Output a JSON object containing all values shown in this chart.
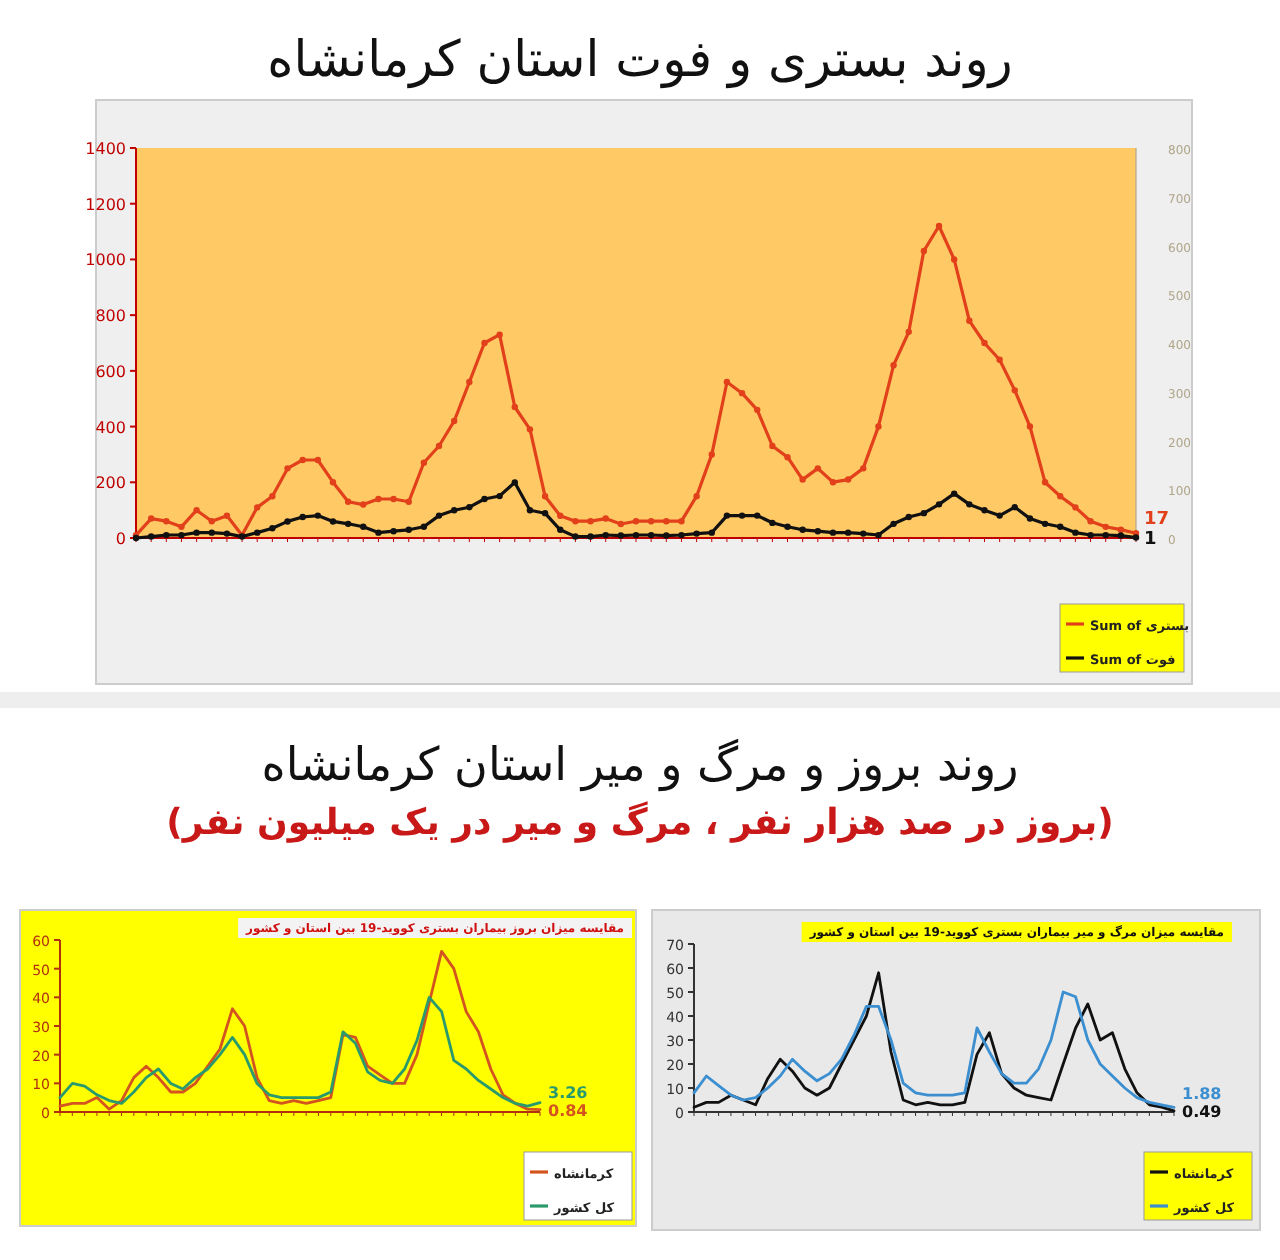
{
  "chart_data": [
    {
      "type": "line",
      "title": "روند بستری و فوت استان کرمانشاه",
      "categories": [
        null,
        null,
        null,
        null,
        null,
        null,
        null,
        null,
        null,
        null,
        null,
        null,
        null,
        null,
        null,
        null,
        null,
        null,
        null,
        null,
        null,
        null,
        null,
        null,
        null,
        null,
        null,
        null,
        null,
        null,
        null,
        null,
        null,
        null,
        null,
        null,
        null,
        null,
        null,
        null,
        null,
        null,
        null,
        null,
        null,
        null,
        null,
        null,
        null,
        null,
        null,
        null,
        null,
        null,
        null,
        null,
        null,
        null,
        null,
        null,
        null,
        null,
        null,
        null,
        null,
        null,
        null
      ],
      "ylim": [
        0,
        1400
      ],
      "yticks": [
        0,
        200,
        400,
        600,
        800,
        1000,
        1200,
        1400
      ],
      "y2lim": [
        0,
        800
      ],
      "y2ticks": [
        0,
        100,
        200,
        300,
        400,
        500,
        600,
        700,
        800
      ],
      "marker": "circle",
      "legend": "bottom right",
      "series": [
        {
          "name": "Sum of بستری",
          "color": "#e2401a",
          "values": [
            10,
            70,
            60,
            40,
            100,
            60,
            80,
            10,
            110,
            150,
            250,
            280,
            280,
            200,
            130,
            120,
            140,
            140,
            130,
            270,
            330,
            420,
            560,
            700,
            730,
            470,
            390,
            150,
            80,
            60,
            60,
            70,
            50,
            60,
            60,
            60,
            60,
            150,
            300,
            560,
            520,
            460,
            330,
            290,
            210,
            250,
            200,
            210,
            250,
            400,
            620,
            740,
            1030,
            1120,
            1000,
            780,
            700,
            640,
            530,
            400,
            200,
            150,
            110,
            60,
            40,
            30,
            17
          ],
          "value_labels": [
            null,
            null,
            null,
            null,
            null,
            null,
            null,
            null,
            null,
            null,
            null,
            null,
            null,
            null,
            null,
            null,
            null,
            null,
            null,
            null,
            null,
            null,
            null,
            null,
            null,
            null,
            null,
            null,
            null,
            null,
            null,
            null,
            null,
            null,
            null,
            null,
            null,
            null,
            null,
            null,
            null,
            null,
            null,
            null,
            null,
            null,
            null,
            null,
            null,
            null,
            null,
            null,
            null,
            null,
            null,
            null,
            null,
            null,
            null,
            null,
            null,
            null,
            null,
            null,
            null,
            null,
            "17"
          ]
        },
        {
          "name": "Sum of فوت",
          "color": "#111111",
          "axis": "y2",
          "values": [
            0,
            3,
            6,
            6,
            11,
            11,
            9,
            3,
            11,
            20,
            34,
            43,
            46,
            34,
            29,
            23,
            11,
            14,
            17,
            23,
            46,
            57,
            63,
            80,
            86,
            114,
            57,
            51,
            17,
            3,
            3,
            6,
            5,
            6,
            6,
            5,
            6,
            9,
            11,
            46,
            46,
            46,
            31,
            23,
            17,
            14,
            11,
            11,
            9,
            6,
            29,
            43,
            51,
            69,
            91,
            69,
            57,
            46,
            63,
            40,
            29,
            23,
            11,
            6,
            6,
            5,
            1
          ],
          "value_labels": [
            null,
            null,
            null,
            null,
            null,
            null,
            null,
            null,
            null,
            null,
            null,
            null,
            null,
            null,
            null,
            null,
            null,
            null,
            null,
            null,
            null,
            null,
            null,
            null,
            null,
            null,
            null,
            null,
            null,
            null,
            null,
            null,
            null,
            null,
            null,
            null,
            null,
            null,
            null,
            null,
            null,
            null,
            null,
            null,
            null,
            null,
            null,
            null,
            null,
            null,
            null,
            null,
            null,
            null,
            null,
            null,
            null,
            null,
            null,
            null,
            null,
            null,
            null,
            null,
            null,
            null,
            "1"
          ]
        }
      ]
    },
    {
      "type": "line",
      "title": "مقایسه میزان بروز بیماران بستری کووید-19 بین استان و کشور",
      "annotations": [
        "روند بروز و مرگ و میر استان کرمانشاه",
        "(بروز در صد هزار نفر ، مرگ و میر در یک میلیون نفر)"
      ],
      "categories": [
        null,
        null,
        null,
        null,
        null,
        null,
        null,
        null,
        null,
        null,
        null,
        null,
        null,
        null,
        null,
        null,
        null,
        null,
        null,
        null,
        null,
        null,
        null,
        null,
        null,
        null,
        null,
        null,
        null,
        null,
        null,
        null,
        null,
        null,
        null,
        null,
        null,
        null,
        null,
        null
      ],
      "ylim": [
        0,
        60
      ],
      "yticks": [
        0,
        10,
        20,
        30,
        40,
        50,
        60
      ],
      "legend": "bottom right",
      "series": [
        {
          "name": "کرمانشاه",
          "color": "#d4541f",
          "values": [
            2,
            3,
            3,
            5,
            1,
            4,
            12,
            16,
            12,
            7,
            7,
            10,
            16,
            22,
            36,
            30,
            12,
            4,
            3,
            4,
            3,
            4,
            5,
            27,
            26,
            16,
            13,
            10,
            10,
            20,
            38,
            56,
            50,
            35,
            28,
            15,
            6,
            3,
            1,
            0.84
          ],
          "value_labels": [
            null,
            null,
            null,
            null,
            null,
            null,
            null,
            null,
            null,
            null,
            null,
            null,
            null,
            null,
            null,
            null,
            null,
            null,
            null,
            null,
            null,
            null,
            null,
            null,
            null,
            null,
            null,
            null,
            null,
            null,
            null,
            null,
            null,
            null,
            null,
            null,
            null,
            null,
            null,
            "0.84"
          ]
        },
        {
          "name": "کل کشور",
          "color": "#2a9a6c",
          "values": [
            5,
            10,
            9,
            6,
            4,
            3,
            7,
            12,
            15,
            10,
            8,
            12,
            15,
            20,
            26,
            20,
            10,
            6,
            5,
            5,
            5,
            5,
            7,
            28,
            24,
            14,
            11,
            10,
            15,
            25,
            40,
            35,
            18,
            15,
            11,
            8,
            5,
            3,
            2,
            3.26
          ],
          "value_labels": [
            null,
            null,
            null,
            null,
            null,
            null,
            null,
            null,
            null,
            null,
            null,
            null,
            null,
            null,
            null,
            null,
            null,
            null,
            null,
            null,
            null,
            null,
            null,
            null,
            null,
            null,
            null,
            null,
            null,
            null,
            null,
            null,
            null,
            null,
            null,
            null,
            null,
            null,
            null,
            "3.26"
          ]
        }
      ]
    },
    {
      "type": "line",
      "title": "مقایسه میزان مرگ و میر بیماران بستری کووید-19 بین استان و کشور",
      "categories": [
        null,
        null,
        null,
        null,
        null,
        null,
        null,
        null,
        null,
        null,
        null,
        null,
        null,
        null,
        null,
        null,
        null,
        null,
        null,
        null,
        null,
        null,
        null,
        null,
        null,
        null,
        null,
        null,
        null,
        null,
        null,
        null,
        null,
        null,
        null,
        null,
        null,
        null,
        null,
        null
      ],
      "ylim": [
        0,
        70
      ],
      "yticks": [
        0,
        10,
        20,
        30,
        40,
        50,
        60,
        70
      ],
      "legend": "bottom right",
      "series": [
        {
          "name": "کرمانشاه",
          "color": "#111111",
          "values": [
            2,
            4,
            4,
            7,
            5,
            3,
            14,
            22,
            17,
            10,
            7,
            10,
            20,
            30,
            40,
            58,
            25,
            5,
            3,
            4,
            3,
            3,
            4,
            24,
            33,
            16,
            10,
            7,
            6,
            5,
            20,
            35,
            45,
            30,
            33,
            18,
            8,
            3,
            2,
            0.49
          ],
          "value_labels": [
            null,
            null,
            null,
            null,
            null,
            null,
            null,
            null,
            null,
            null,
            null,
            null,
            null,
            null,
            null,
            null,
            null,
            null,
            null,
            null,
            null,
            null,
            null,
            null,
            null,
            null,
            null,
            null,
            null,
            null,
            null,
            null,
            null,
            null,
            null,
            null,
            null,
            null,
            null,
            "0.49"
          ]
        },
        {
          "name": "کل کشور",
          "color": "#3b8fd0",
          "values": [
            8,
            15,
            11,
            7,
            5,
            6,
            10,
            15,
            22,
            17,
            13,
            16,
            22,
            32,
            44,
            44,
            30,
            12,
            8,
            7,
            7,
            7,
            8,
            35,
            25,
            16,
            12,
            12,
            18,
            30,
            50,
            48,
            30,
            20,
            15,
            10,
            6,
            4,
            3,
            1.88
          ],
          "value_labels": [
            null,
            null,
            null,
            null,
            null,
            null,
            null,
            null,
            null,
            null,
            null,
            null,
            null,
            null,
            null,
            null,
            null,
            null,
            null,
            null,
            null,
            null,
            null,
            null,
            null,
            null,
            null,
            null,
            null,
            null,
            null,
            null,
            null,
            null,
            null,
            null,
            null,
            null,
            null,
            "1.88"
          ]
        }
      ]
    }
  ]
}
